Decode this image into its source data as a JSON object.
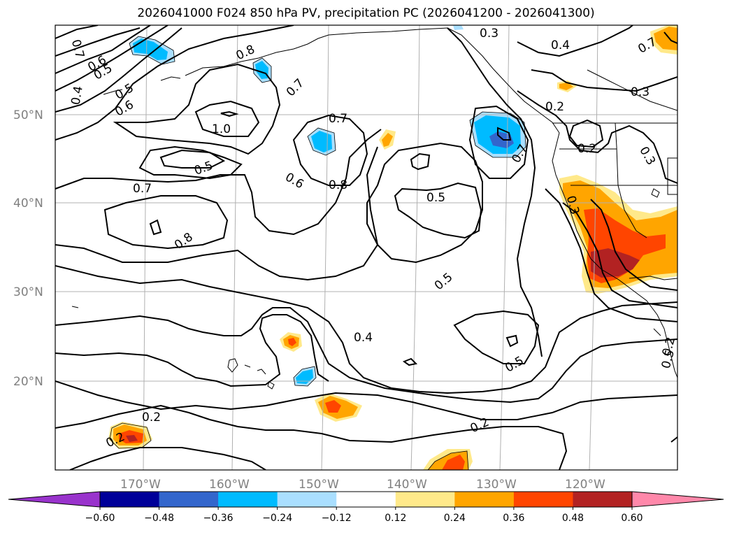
{
  "title": "2026041000 F024 850 hPa PV, precipitation PC (2026041200 - 2026041300)",
  "map": {
    "lat_ticks": [
      {
        "label": "50°N",
        "value": 50
      },
      {
        "label": "40°N",
        "value": 40
      },
      {
        "label": "30°N",
        "value": 30
      },
      {
        "label": "20°N",
        "value": 20
      }
    ],
    "lon_ticks": [
      {
        "label": "170°W",
        "value": -170
      },
      {
        "label": "160°W",
        "value": -160
      },
      {
        "label": "150°W",
        "value": -150
      },
      {
        "label": "140°W",
        "value": -140
      },
      {
        "label": "130°W",
        "value": -130
      },
      {
        "label": "120°W",
        "value": -120
      }
    ],
    "extent": {
      "lon_min": -180,
      "lon_max": -110,
      "lat_min": 10,
      "lat_max": 60
    },
    "contour_labels": [
      "0.7",
      "0.6",
      "0.5",
      "0.4",
      "0.5",
      "0.6",
      "0.8",
      "0.7",
      "1.0",
      "0.5",
      "0.7",
      "0.7",
      "0.8",
      "0.6",
      "0.5",
      "0.8",
      "0.5",
      "0.3",
      "0.4",
      "0.7",
      "0.3",
      "0.2",
      "0.2",
      "0.7",
      "0.3",
      "0.3",
      "0.5",
      "0.4",
      "0.5",
      "0.2",
      "0.2",
      "0.2",
      "0.2"
    ]
  },
  "colorbar": {
    "tick_labels": [
      "−0.60",
      "−0.48",
      "−0.36",
      "−0.24",
      "−0.12",
      "0.12",
      "0.24",
      "0.36",
      "0.48",
      "0.60"
    ],
    "levels": [
      -0.6,
      -0.48,
      -0.36,
      -0.24,
      -0.12,
      0.12,
      0.24,
      0.36,
      0.48,
      0.6
    ],
    "colors": [
      "#9933cc",
      "#000099",
      "#3366cc",
      "#00bbff",
      "#aadfff",
      "#ffffff",
      "#ffe98a",
      "#ffa500",
      "#ff4500",
      "#b22222",
      "#ff88aa"
    ]
  }
}
